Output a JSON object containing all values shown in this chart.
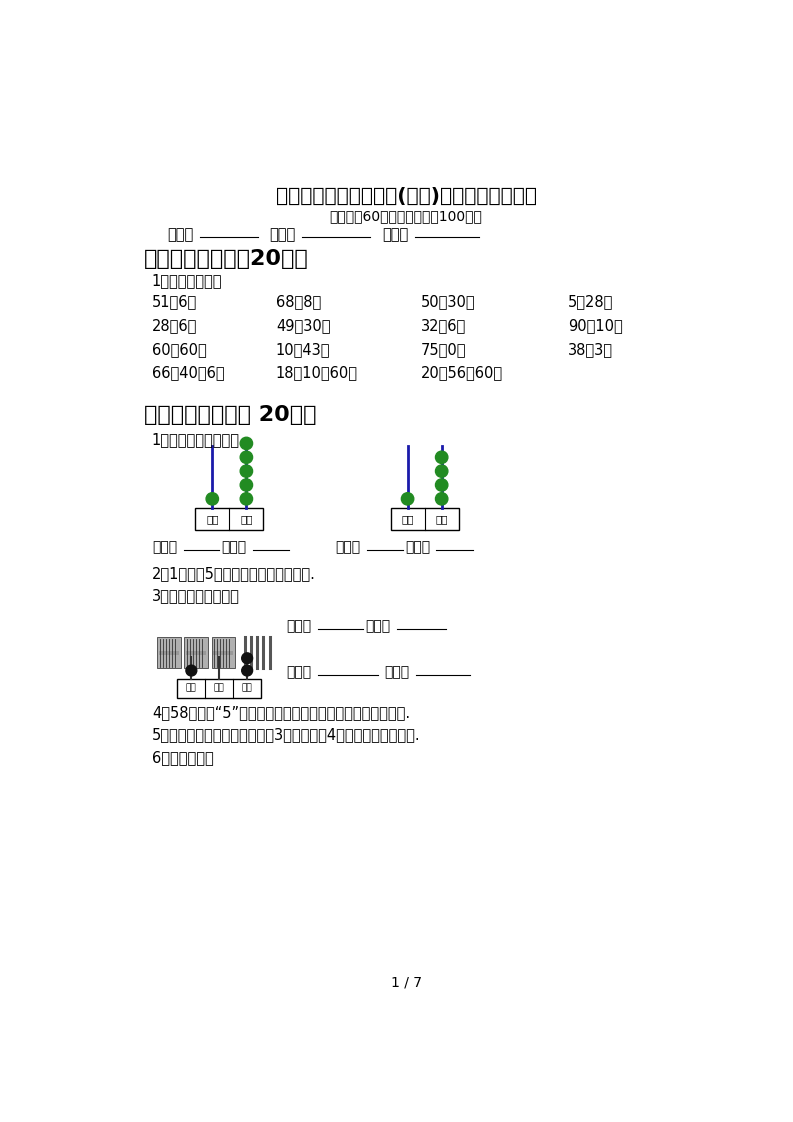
{
  "title": "最新苏教版一年级数学(下册)期末试卷及答案一",
  "subtitle": "（时间：60分钟　　分数：100分）",
  "banj": "班级：",
  "xingm": "姓名：",
  "fens": "分数：",
  "section1_title": "一、计算小能手（20分）",
  "section1_sub": "1、看谁算的对。",
  "calc_rows": [
    [
      "51－6＝",
      "68－8＝",
      "50＋30＝",
      "5＋28＝"
    ],
    [
      "28＋6＝",
      "49－30＝",
      "32－6＝",
      "90＋10＝"
    ],
    [
      "60－60＝",
      "10＋43＝",
      "75－0＝",
      "38－3＝"
    ],
    [
      "66－40－6＝",
      "18－10＋60＝",
      "20＋56－60＝",
      ""
    ]
  ],
  "section2_title": "二、填空题。（共 20分）",
  "section2_sub1": "1、写一写，读一读。",
  "section2_sub2": "2、1个十和5个一合起来是（　　　）.",
  "section2_sub3": "3、我会读，我会写。",
  "read_label": "读作：",
  "write_label": "写作：",
  "zuow_label": "写作：",
  "duz_label": "读作：",
  "section2_sub4": "4、58里面的“5”在（　　）位上，表示（　　）个（　　）.",
  "section2_sub5": "5、一个数，从右边起第一位是3，第二位是4，这个数是（　　）.",
  "section2_sub6": "6、看图写数。",
  "shw_pos_label": "十位",
  "ge_pos_label": "个位",
  "bai_pos_label": "百位",
  "page_num": "1 / 7",
  "bg_color": "#ffffff",
  "text_color": "#000000"
}
